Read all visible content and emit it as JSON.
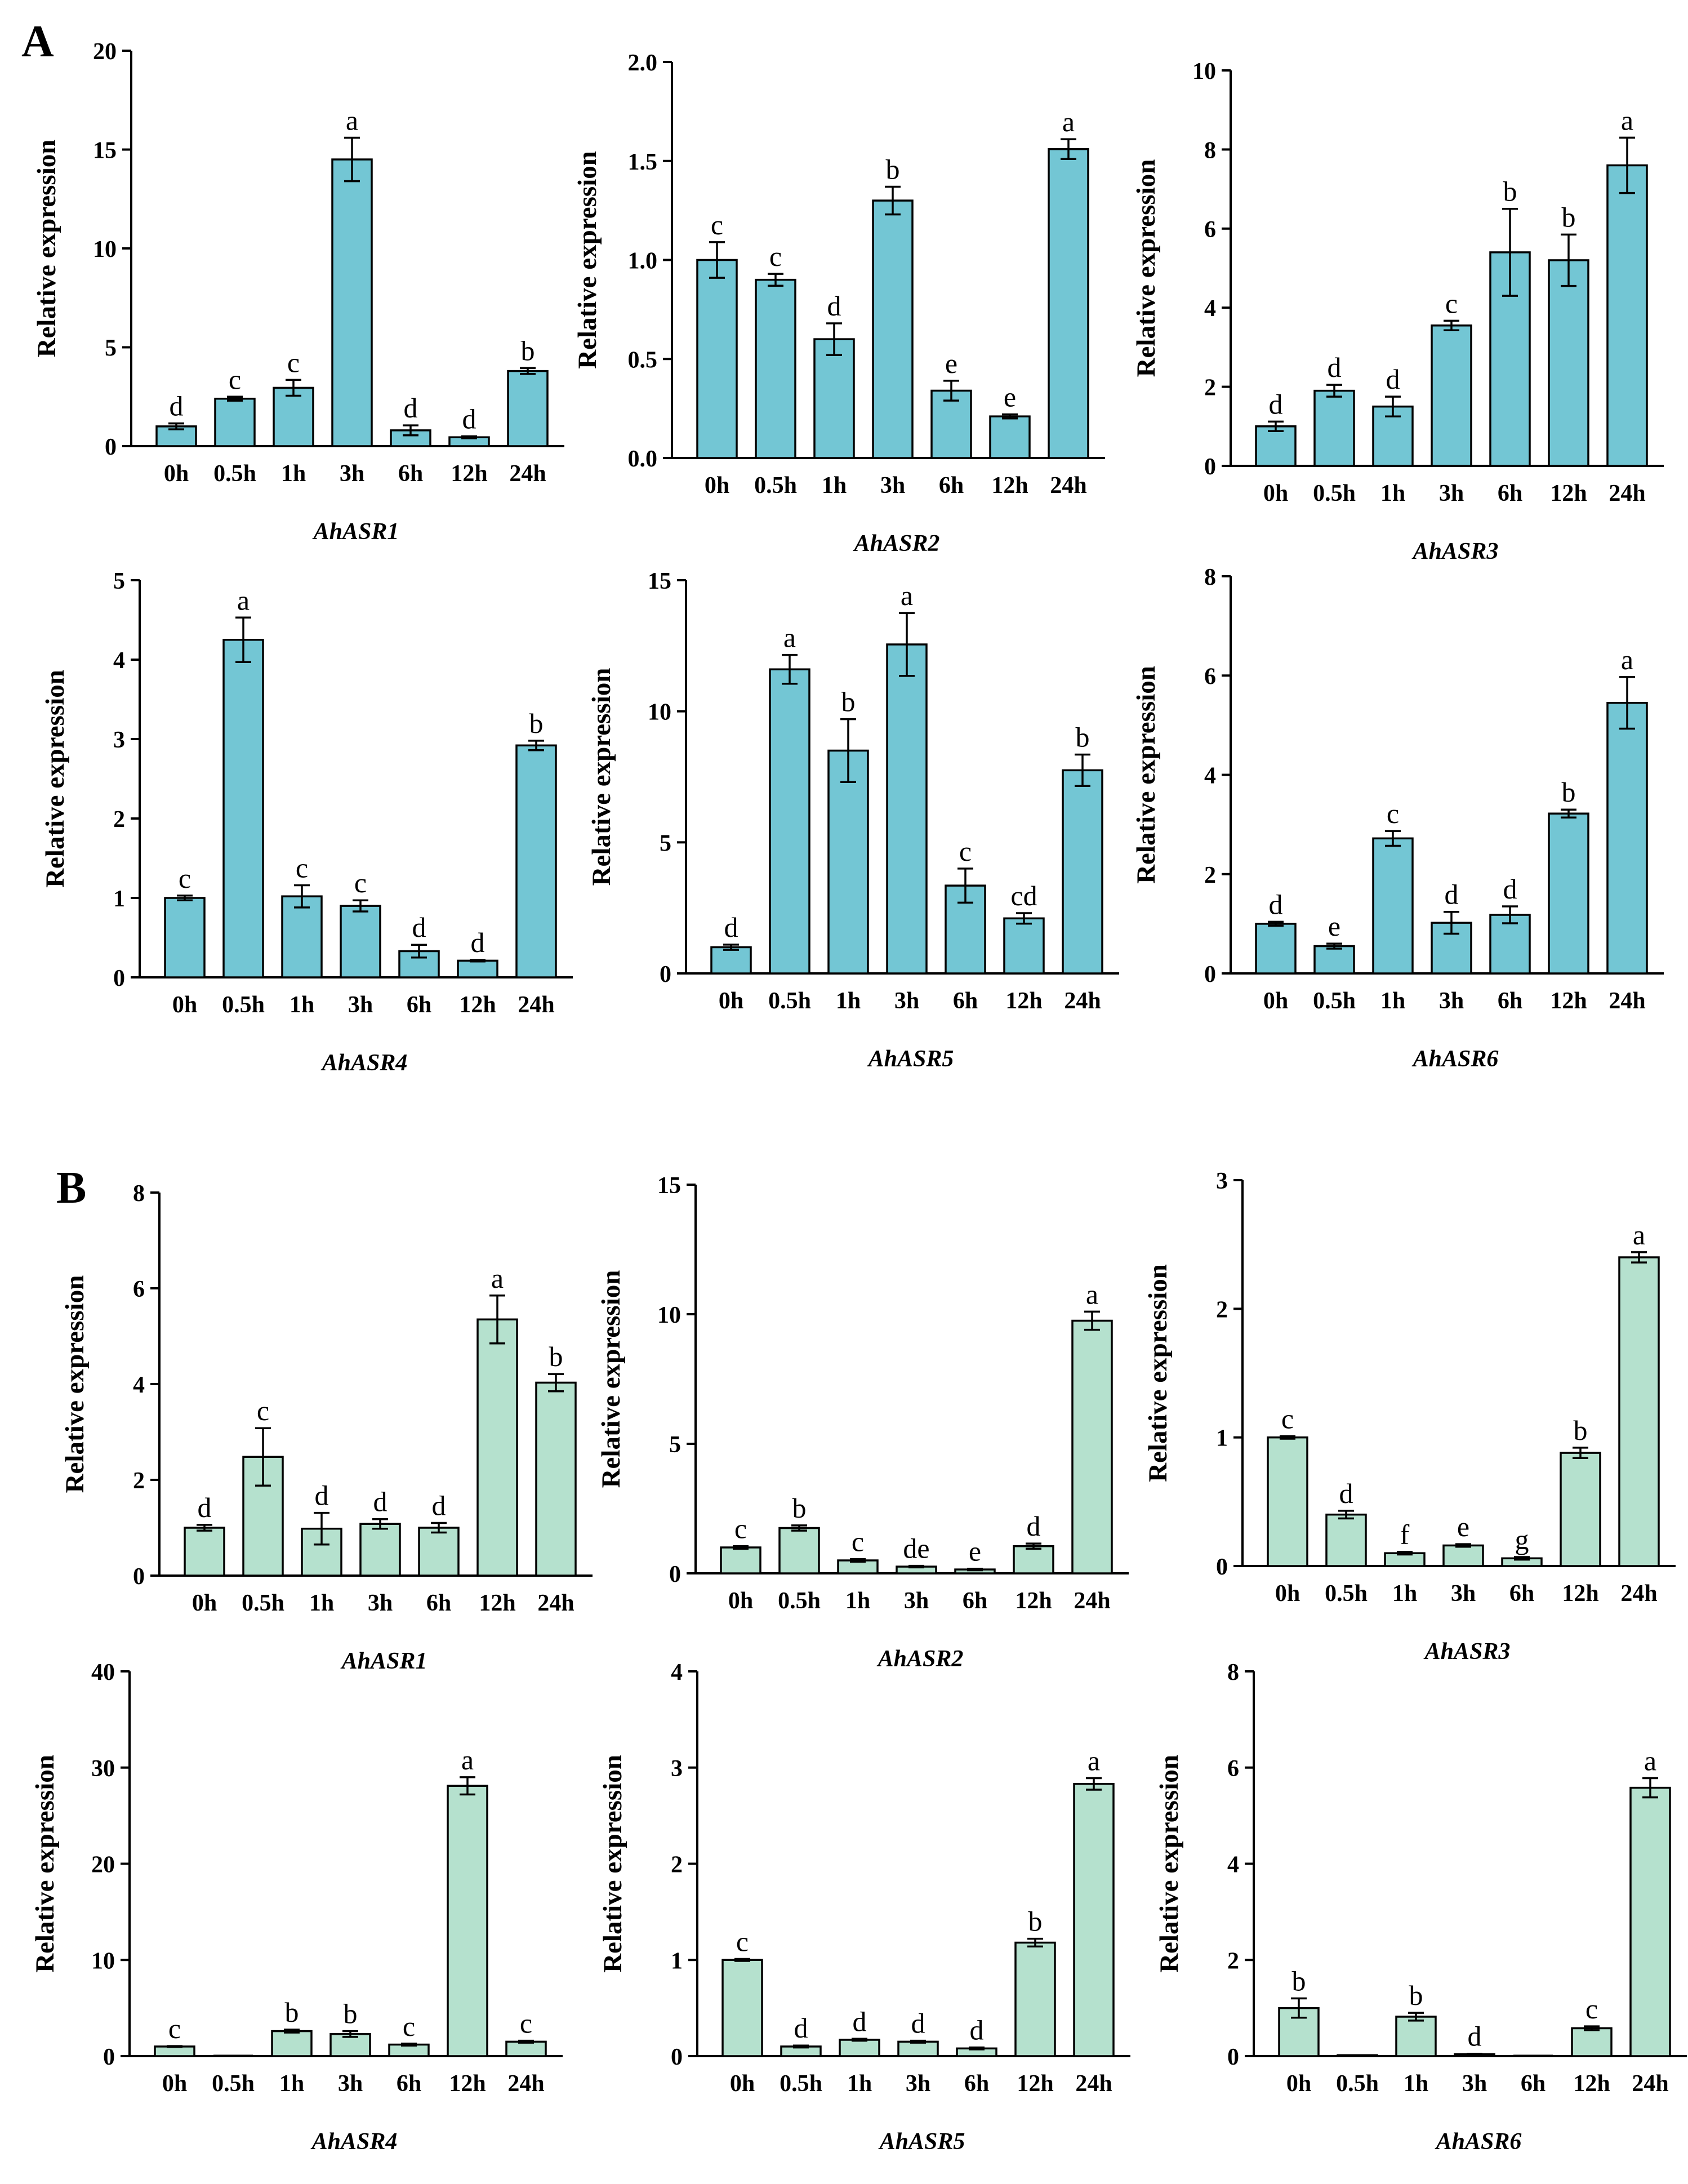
{
  "panels": [
    {
      "label": "A",
      "fill": "#73c6d4"
    },
    {
      "label": "B",
      "fill": "#b5e1ce"
    }
  ],
  "chart_data": [
    {
      "panel": "A",
      "type": "bar",
      "title": "AhASR1",
      "ylabel": "Relative expression",
      "categories": [
        "0h",
        "0.5h",
        "1h",
        "3h",
        "6h",
        "12h",
        "24h"
      ],
      "values": [
        1.0,
        2.4,
        2.95,
        14.5,
        0.8,
        0.45,
        3.8
      ],
      "errors": [
        0.15,
        0.1,
        0.4,
        1.1,
        0.25,
        0.05,
        0.15
      ],
      "significance": [
        "d",
        "c",
        "c",
        "a",
        "d",
        "d",
        "b"
      ],
      "ylim": [
        0,
        20
      ],
      "yticks": [
        0,
        5,
        10,
        15,
        20
      ],
      "ytick_labels": [
        "0",
        "5",
        "10",
        "15",
        "20"
      ]
    },
    {
      "panel": "A",
      "type": "bar",
      "title": "AhASR2",
      "ylabel": "Relative expression",
      "categories": [
        "0h",
        "0.5h",
        "1h",
        "3h",
        "6h",
        "12h",
        "24h"
      ],
      "values": [
        1.0,
        0.9,
        0.6,
        1.3,
        0.34,
        0.21,
        1.56
      ],
      "errors": [
        0.09,
        0.03,
        0.08,
        0.07,
        0.05,
        0.01,
        0.05
      ],
      "significance": [
        "c",
        "c",
        "d",
        "b",
        "e",
        "e",
        "a"
      ],
      "ylim": [
        0,
        2.0
      ],
      "yticks": [
        0,
        0.5,
        1.0,
        1.5,
        2.0
      ],
      "ytick_labels": [
        "0.0",
        "0.5",
        "1.0",
        "1.5",
        "2.0"
      ]
    },
    {
      "panel": "A",
      "type": "bar",
      "title": "AhASR3",
      "ylabel": "Relative expression",
      "categories": [
        "0h",
        "0.5h",
        "1h",
        "3h",
        "6h",
        "12h",
        "24h"
      ],
      "values": [
        1.0,
        1.9,
        1.5,
        3.55,
        5.4,
        5.2,
        7.6
      ],
      "errors": [
        0.12,
        0.15,
        0.25,
        0.12,
        1.1,
        0.65,
        0.7
      ],
      "significance": [
        "d",
        "d",
        "d",
        "c",
        "b",
        "b",
        "a"
      ],
      "ylim": [
        0,
        10
      ],
      "yticks": [
        0,
        2,
        4,
        6,
        8,
        10
      ],
      "ytick_labels": [
        "0",
        "2",
        "4",
        "6",
        "8",
        "10"
      ]
    },
    {
      "panel": "A",
      "type": "bar",
      "title": "AhASR4",
      "ylabel": "Relative expression",
      "categories": [
        "0h",
        "0.5h",
        "1h",
        "3h",
        "6h",
        "12h",
        "24h"
      ],
      "values": [
        1.0,
        4.25,
        1.02,
        0.9,
        0.33,
        0.21,
        2.92
      ],
      "errors": [
        0.03,
        0.28,
        0.14,
        0.07,
        0.08,
        0.01,
        0.06
      ],
      "significance": [
        "c",
        "a",
        "c",
        "c",
        "d",
        "d",
        "b"
      ],
      "ylim": [
        0,
        5
      ],
      "yticks": [
        0,
        1,
        2,
        3,
        4,
        5
      ],
      "ytick_labels": [
        "0",
        "1",
        "2",
        "3",
        "4",
        "5"
      ]
    },
    {
      "panel": "A",
      "type": "bar",
      "title": "AhASR5",
      "ylabel": "Relative expression",
      "categories": [
        "0h",
        "0.5h",
        "1h",
        "3h",
        "6h",
        "12h",
        "24h"
      ],
      "values": [
        1.0,
        11.6,
        8.5,
        12.55,
        3.35,
        2.1,
        7.75
      ],
      "errors": [
        0.1,
        0.55,
        1.2,
        1.2,
        0.65,
        0.2,
        0.6
      ],
      "significance": [
        "d",
        "a",
        "b",
        "a",
        "c",
        "cd",
        "b"
      ],
      "ylim": [
        0,
        15
      ],
      "yticks": [
        0,
        5,
        10,
        15
      ],
      "ytick_labels": [
        "0",
        "5",
        "10",
        "15"
      ]
    },
    {
      "panel": "A",
      "type": "bar",
      "title": "AhASR6",
      "ylabel": "Relative expression",
      "categories": [
        "0h",
        "0.5h",
        "1h",
        "3h",
        "6h",
        "12h",
        "24h"
      ],
      "values": [
        1.0,
        0.55,
        2.72,
        1.02,
        1.18,
        3.22,
        5.45
      ],
      "errors": [
        0.04,
        0.05,
        0.15,
        0.22,
        0.17,
        0.08,
        0.52
      ],
      "significance": [
        "d",
        "e",
        "c",
        "d",
        "d",
        "b",
        "a"
      ],
      "ylim": [
        0,
        8
      ],
      "yticks": [
        0,
        2,
        4,
        6,
        8
      ],
      "ytick_labels": [
        "0",
        "2",
        "4",
        "6",
        "8"
      ]
    },
    {
      "panel": "B",
      "type": "bar",
      "title": "AhASR1",
      "ylabel": "Relative expression",
      "categories": [
        "0h",
        "0.5h",
        "1h",
        "3h",
        "6h",
        "12h",
        "24h"
      ],
      "values": [
        1.0,
        2.48,
        0.98,
        1.08,
        1.0,
        5.35,
        4.03
      ],
      "errors": [
        0.06,
        0.6,
        0.33,
        0.1,
        0.1,
        0.5,
        0.18
      ],
      "significance": [
        "d",
        "c",
        "d",
        "d",
        "d",
        "a",
        "b"
      ],
      "ylim": [
        0,
        8
      ],
      "yticks": [
        0,
        2,
        4,
        6,
        8
      ],
      "ytick_labels": [
        "0",
        "2",
        "4",
        "6",
        "8"
      ]
    },
    {
      "panel": "B",
      "type": "bar",
      "title": "AhASR2",
      "ylabel": "Relative expression",
      "categories": [
        "0h",
        "0.5h",
        "1h",
        "3h",
        "6h",
        "12h",
        "24h"
      ],
      "values": [
        1.0,
        1.75,
        0.5,
        0.26,
        0.15,
        1.05,
        9.75
      ],
      "errors": [
        0.05,
        0.1,
        0.05,
        0.03,
        0.03,
        0.1,
        0.35
      ],
      "significance": [
        "c",
        "b",
        "c",
        "de",
        "e",
        "d",
        "a"
      ],
      "ylim": [
        0,
        15
      ],
      "yticks": [
        0,
        5,
        10,
        15
      ],
      "ytick_labels": [
        "0",
        "5",
        "10",
        "15"
      ]
    },
    {
      "panel": "B",
      "type": "bar",
      "title": "AhASR3",
      "ylabel": "Relative expression",
      "categories": [
        "0h",
        "0.5h",
        "1h",
        "3h",
        "6h",
        "12h",
        "24h"
      ],
      "values": [
        1.0,
        0.4,
        0.1,
        0.16,
        0.06,
        0.88,
        2.4
      ],
      "errors": [
        0.01,
        0.03,
        0.01,
        0.01,
        0.01,
        0.04,
        0.04
      ],
      "significance": [
        "c",
        "d",
        "f",
        "e",
        "g",
        "b",
        "a"
      ],
      "ylim": [
        0,
        3
      ],
      "yticks": [
        0,
        1,
        2,
        3
      ],
      "ytick_labels": [
        "0",
        "1",
        "2",
        "3"
      ]
    },
    {
      "panel": "B",
      "type": "bar",
      "title": "AhASR4",
      "ylabel": "Relative expression",
      "categories": [
        "0h",
        "0.5h",
        "1h",
        "3h",
        "6h",
        "12h",
        "24h"
      ],
      "values": [
        1.0,
        0.0,
        2.6,
        2.3,
        1.2,
        28.1,
        1.5
      ],
      "errors": [
        0.05,
        0.0,
        0.15,
        0.3,
        0.1,
        0.9,
        0.1
      ],
      "significance": [
        "c",
        "",
        "b",
        "b",
        "c",
        "a",
        "c"
      ],
      "ylim": [
        0,
        40
      ],
      "yticks": [
        0,
        10,
        20,
        30,
        40
      ],
      "ytick_labels": [
        "0",
        "10",
        "20",
        "30",
        "40"
      ]
    },
    {
      "panel": "B",
      "type": "bar",
      "title": "AhASR5",
      "ylabel": "Relative expression",
      "categories": [
        "0h",
        "0.5h",
        "1h",
        "3h",
        "6h",
        "12h",
        "24h"
      ],
      "values": [
        1.0,
        0.1,
        0.17,
        0.15,
        0.08,
        1.18,
        2.83
      ],
      "errors": [
        0.01,
        0.01,
        0.01,
        0.01,
        0.01,
        0.04,
        0.06
      ],
      "significance": [
        "c",
        "d",
        "d",
        "d",
        "d",
        "b",
        "a"
      ],
      "ylim": [
        0,
        4
      ],
      "yticks": [
        0,
        1,
        2,
        3,
        4
      ],
      "ytick_labels": [
        "0",
        "1",
        "2",
        "3",
        "4"
      ]
    },
    {
      "panel": "B",
      "type": "bar",
      "title": "AhASR6",
      "ylabel": "Relative expression",
      "categories": [
        "0h",
        "0.5h",
        "1h",
        "3h",
        "6h",
        "12h",
        "24h"
      ],
      "values": [
        1.0,
        0.02,
        0.82,
        0.04,
        0.0,
        0.58,
        5.58
      ],
      "errors": [
        0.2,
        0.0,
        0.08,
        0.01,
        0.0,
        0.04,
        0.2
      ],
      "significance": [
        "b",
        "",
        "b",
        "d",
        "",
        "c",
        "a"
      ],
      "ylim": [
        0,
        8
      ],
      "yticks": [
        0,
        2,
        4,
        6,
        8
      ],
      "ytick_labels": [
        "0",
        "2",
        "4",
        "6",
        "8"
      ]
    }
  ]
}
